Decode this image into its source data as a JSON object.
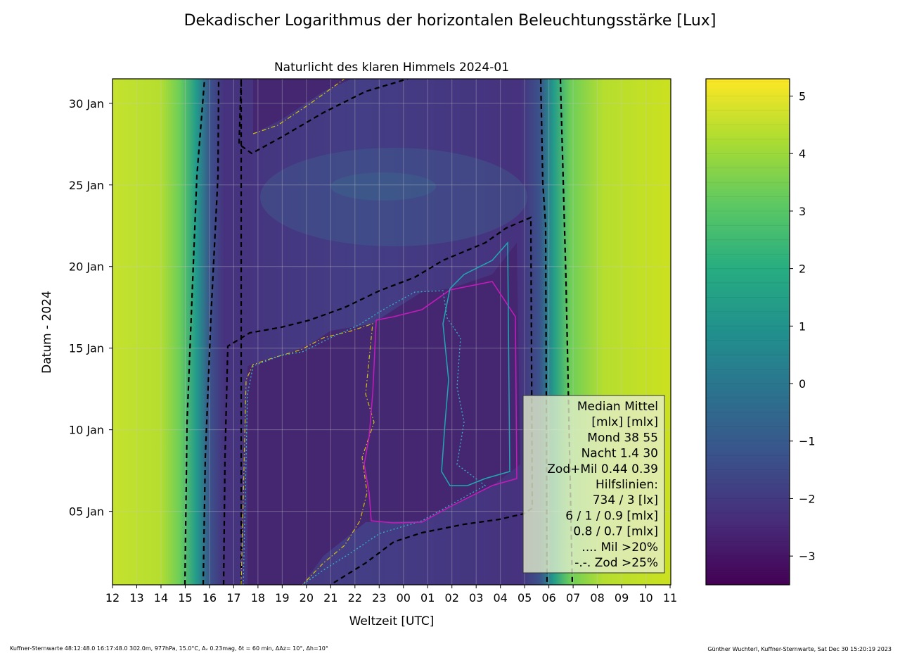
{
  "chart_data": {
    "type": "heatmap",
    "title": "Dekadischer Logarithmus der horizontalen Beleuchtungsstärke [Lux]",
    "subtitle": "Naturlicht des klaren Himmels 2024-01",
    "xlabel": "Weltzeit [UTC]",
    "ylabel": "Datum - 2024",
    "x_ticks": [
      "12",
      "13",
      "14",
      "15",
      "16",
      "17",
      "18",
      "19",
      "20",
      "21",
      "22",
      "23",
      "00",
      "01",
      "02",
      "03",
      "04",
      "05",
      "06",
      "07",
      "08",
      "09",
      "10",
      "11"
    ],
    "y_ticks": [
      {
        "label": "05 Jan",
        "day": 5
      },
      {
        "label": "10 Jan",
        "day": 10
      },
      {
        "label": "15 Jan",
        "day": 15
      },
      {
        "label": "20 Jan",
        "day": 20
      },
      {
        "label": "25 Jan",
        "day": 25
      },
      {
        "label": "30 Jan",
        "day": 30
      }
    ],
    "xlim": [
      12,
      35
    ],
    "ylim": [
      1,
      31
    ],
    "grid": true,
    "colorbar": {
      "range": [
        -3.5,
        5.3
      ],
      "ticks": [
        {
          "label": "−3",
          "value": -3
        },
        {
          "label": "−2",
          "value": -2
        },
        {
          "label": "−1",
          "value": -1
        },
        {
          "label": "0",
          "value": 0
        },
        {
          "label": "1",
          "value": 1
        },
        {
          "label": "2",
          "value": 2
        },
        {
          "label": "3",
          "value": 3
        },
        {
          "label": "4",
          "value": 4
        },
        {
          "label": "5",
          "value": 5
        }
      ]
    },
    "legend": {
      "placement": "lower-right",
      "lines": [
        "Median Mittel",
        "[mlx]  [mlx]",
        "Mond   38  55",
        "Nacht 1.4  30",
        "Zod+Mil 0.44  0.39",
        "Hilfslinien:",
        "734 / 3  [lx]",
        "6 / 1 / 0.9 [mlx]",
        "0.8 / 0.7 [mlx]",
        ".... Mil >20%",
        "-.-. Zod >25%"
      ]
    }
  },
  "footer": {
    "left": "Kuffner-Sternwarte 48:12:48.0 16:17:48.0 302.0m,  977hPa, 15.0°C, Aᵥ 0.23mag, δt = 60 min, ΔAz= 10°, Δh=10°",
    "right": "Günther Wuchterl, Kuffner-Sternwarte, Sat Dec 30 15:20:19 2023"
  },
  "colors": {
    "viridis": [
      "#440154",
      "#472c7a",
      "#3b518b",
      "#2c718e",
      "#21908d",
      "#27ad81",
      "#5cc863",
      "#aadc32",
      "#fde725"
    ]
  }
}
